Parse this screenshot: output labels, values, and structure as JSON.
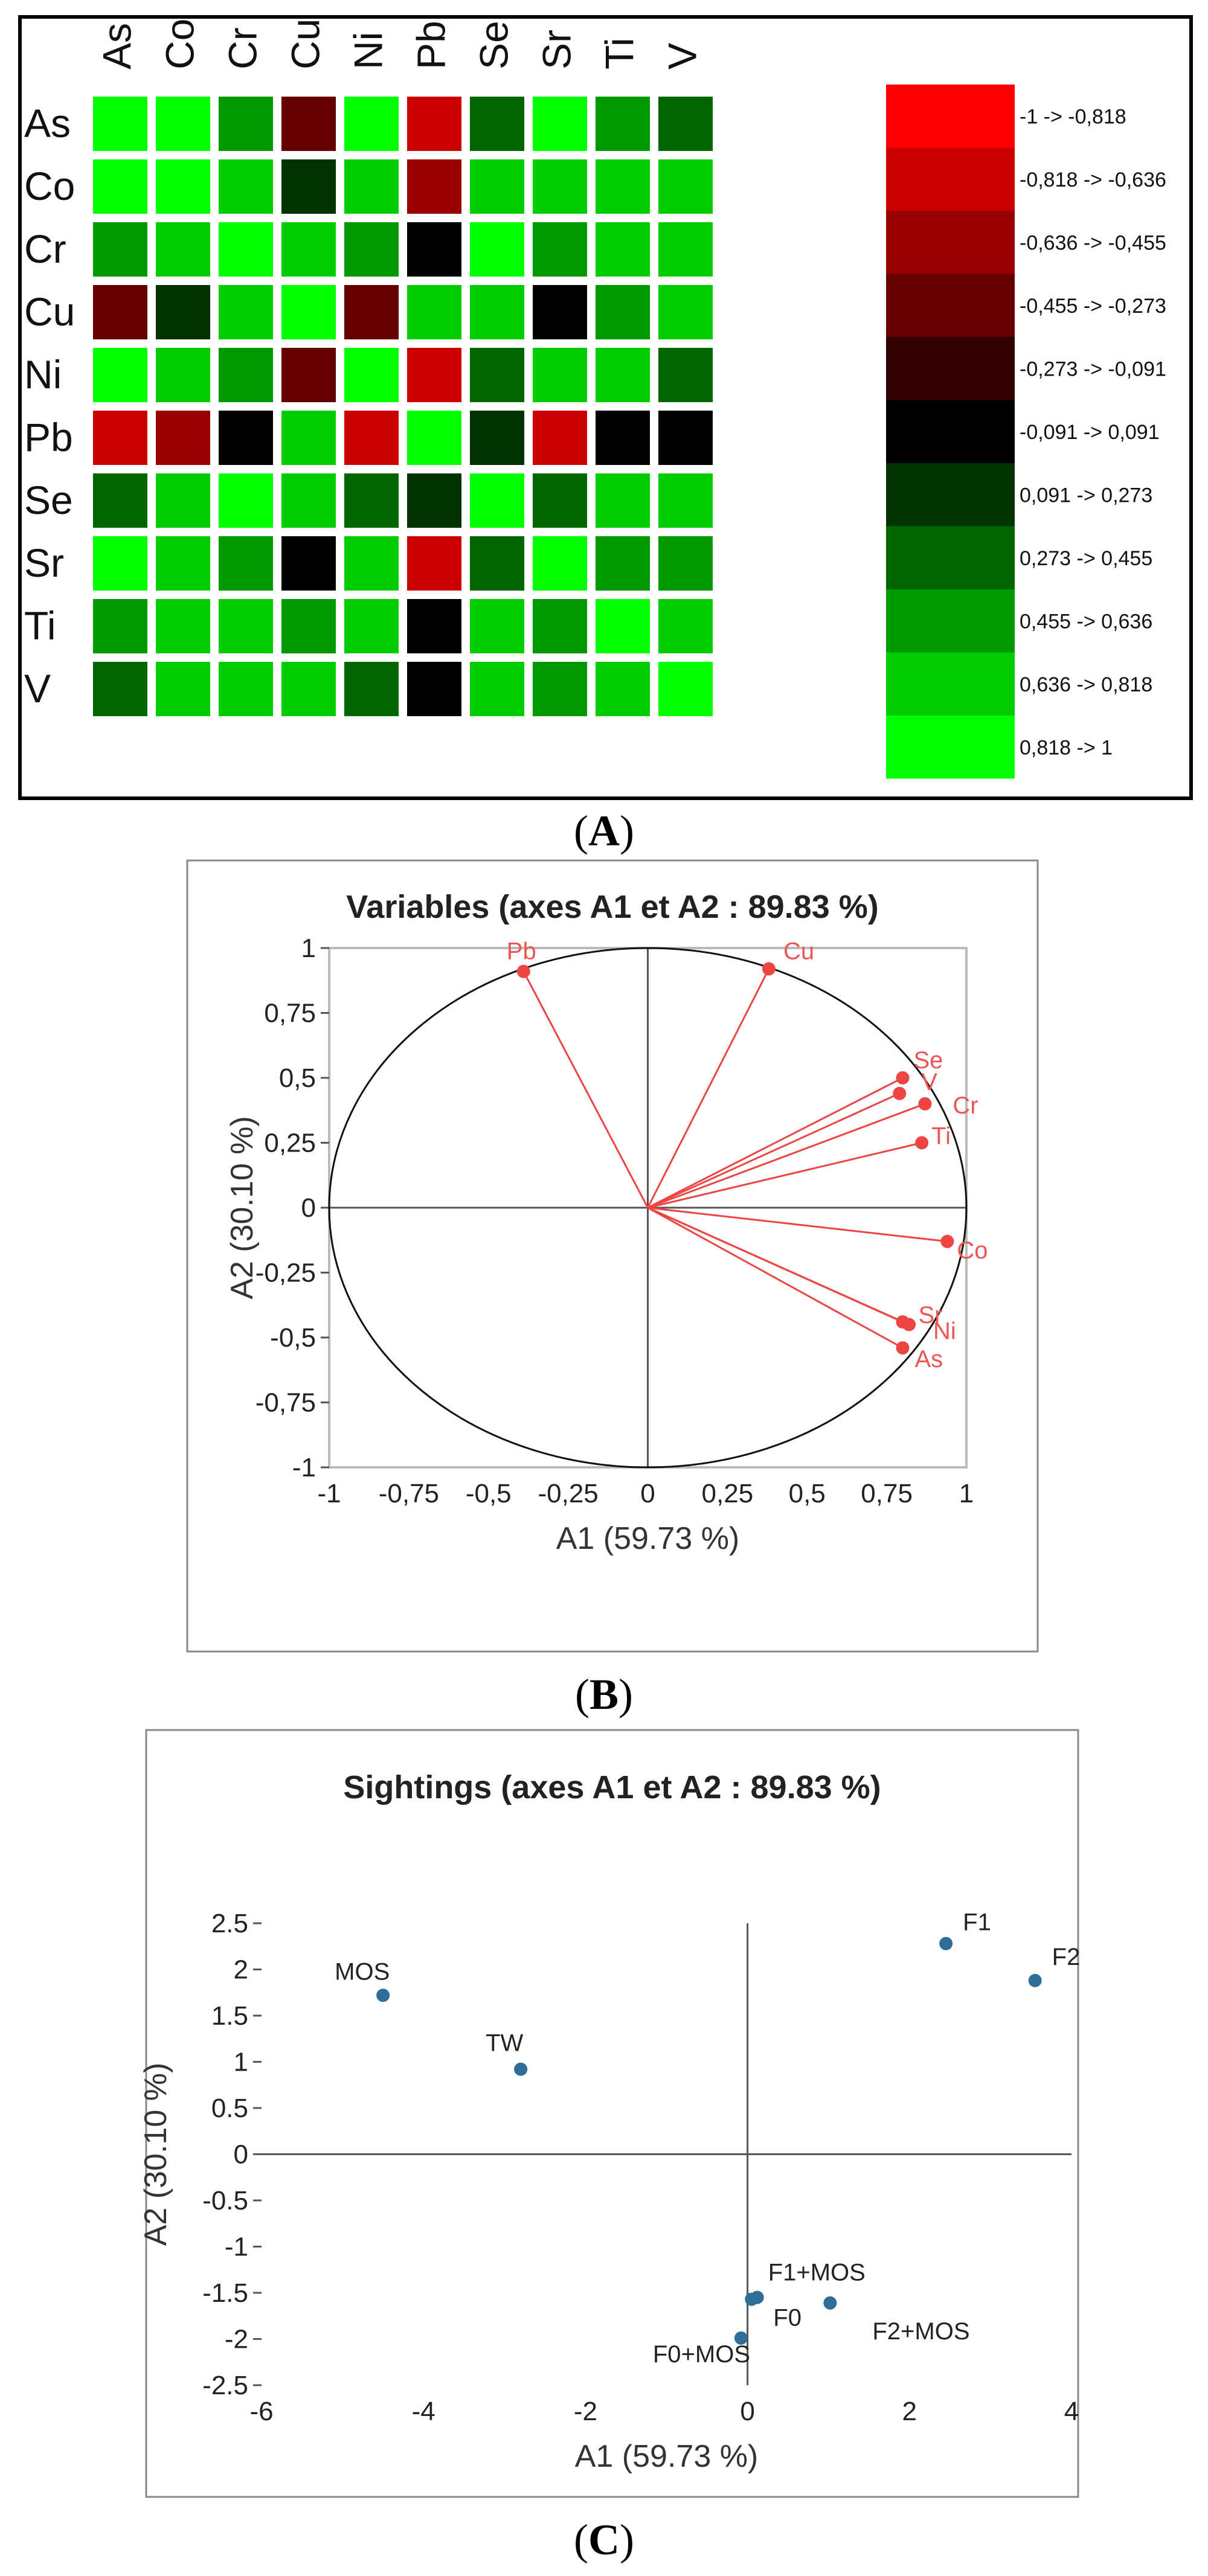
{
  "captions": {
    "a": "A",
    "b": "B",
    "c": "C"
  },
  "chart_data": [
    {
      "type": "heatmap",
      "variables": [
        "As",
        "Co",
        "Cr",
        "Cu",
        "Ni",
        "Pb",
        "Se",
        "Sr",
        "Ti",
        "V"
      ],
      "matrix": [
        [
          1,
          0.9,
          0.55,
          -0.35,
          0.9,
          -0.75,
          0.35,
          0.9,
          0.55,
          0.35
        ],
        [
          0.9,
          1,
          0.75,
          0.2,
          0.75,
          -0.55,
          0.75,
          0.75,
          0.75,
          0.75
        ],
        [
          0.55,
          0.75,
          1,
          0.75,
          0.55,
          0.0,
          0.9,
          0.55,
          0.75,
          0.75
        ],
        [
          -0.35,
          0.2,
          0.75,
          1,
          -0.35,
          0.75,
          0.75,
          0.0,
          0.55,
          0.75
        ],
        [
          0.9,
          0.75,
          0.55,
          -0.35,
          1,
          -0.75,
          0.35,
          0.75,
          0.75,
          0.35
        ],
        [
          -0.75,
          -0.55,
          0.0,
          0.75,
          -0.75,
          1,
          0.2,
          -0.75,
          0.0,
          0.0
        ],
        [
          0.35,
          0.75,
          0.9,
          0.75,
          0.35,
          0.2,
          1,
          0.35,
          0.75,
          0.75
        ],
        [
          0.9,
          0.75,
          0.55,
          0.0,
          0.75,
          -0.75,
          0.35,
          1,
          0.55,
          0.55
        ],
        [
          0.55,
          0.75,
          0.75,
          0.55,
          0.75,
          0.0,
          0.75,
          0.55,
          1,
          0.75
        ],
        [
          0.35,
          0.75,
          0.75,
          0.75,
          0.35,
          0.0,
          0.75,
          0.55,
          0.75,
          1
        ]
      ],
      "legend": [
        {
          "label": "-1 -> -0,818",
          "color": "#ff0000"
        },
        {
          "label": "-0,818 -> -0,636",
          "color": "#cc0000"
        },
        {
          "label": "-0,636 -> -0,455",
          "color": "#990000"
        },
        {
          "label": "-0,455 -> -0,273",
          "color": "#660000"
        },
        {
          "label": "-0,273 -> -0,091",
          "color": "#330000"
        },
        {
          "label": "-0,091 -> 0,091",
          "color": "#000000"
        },
        {
          "label": "0,091 -> 0,273",
          "color": "#003300"
        },
        {
          "label": "0,273 -> 0,455",
          "color": "#006600"
        },
        {
          "label": "0,455 -> 0,636",
          "color": "#009900"
        },
        {
          "label": "0,636 -> 0,818",
          "color": "#00cc00"
        },
        {
          "label": "0,818 -> 1",
          "color": "#00ff00"
        }
      ],
      "bins": [
        -1,
        -0.818,
        -0.636,
        -0.455,
        -0.273,
        -0.091,
        0.091,
        0.273,
        0.455,
        0.636,
        0.818,
        1
      ]
    },
    {
      "type": "scatter",
      "title": "Variables (axes A1 et A2 : 89.83 %)",
      "xlabel": "A1 (59.73 %)",
      "ylabel": "A2 (30.10 %)",
      "xlim": [
        -1,
        1
      ],
      "ylim": [
        -1,
        1
      ],
      "xticks": [
        "-1",
        "-0,75",
        "-0,5",
        "-0,25",
        "0",
        "0,25",
        "0,5",
        "0,75",
        "1"
      ],
      "yticks": [
        "1",
        "0,75",
        "0,5",
        "0,25",
        "0",
        "-0,25",
        "-0,5",
        "-0,75",
        "-1"
      ],
      "point_color": "#ee4444",
      "points": [
        {
          "label": "Pb",
          "x": -0.39,
          "y": 0.91
        },
        {
          "label": "Cu",
          "x": 0.38,
          "y": 0.92
        },
        {
          "label": "Se",
          "x": 0.8,
          "y": 0.5
        },
        {
          "label": "V",
          "x": 0.79,
          "y": 0.44
        },
        {
          "label": "Cr",
          "x": 0.87,
          "y": 0.4
        },
        {
          "label": "Ti",
          "x": 0.86,
          "y": 0.25
        },
        {
          "label": "Co",
          "x": 0.94,
          "y": -0.13
        },
        {
          "label": "Sr",
          "x": 0.8,
          "y": -0.44
        },
        {
          "label": "Ni",
          "x": 0.82,
          "y": -0.45
        },
        {
          "label": "As",
          "x": 0.8,
          "y": -0.54
        }
      ]
    },
    {
      "type": "scatter",
      "title": "Sightings (axes A1 et A2 : 89.83 %)",
      "xlabel": "A1 (59.73 %)",
      "ylabel": "A2 (30.10 %)",
      "xlim": [
        -6,
        4
      ],
      "ylim": [
        -2.5,
        2.5
      ],
      "xticks": [
        "-6",
        "-4",
        "-2",
        "0",
        "2",
        "4"
      ],
      "yticks": [
        "2.5",
        "2",
        "1.5",
        "1",
        "0.5",
        "0",
        "-0.5",
        "-1",
        "-1.5",
        "-2",
        "-2.5"
      ],
      "point_color": "#2e6e99",
      "points": [
        {
          "label": "F1",
          "x": 2.45,
          "y": 2.28
        },
        {
          "label": "F2",
          "x": 3.55,
          "y": 1.88
        },
        {
          "label": "MOS",
          "x": -4.5,
          "y": 1.72
        },
        {
          "label": "TW",
          "x": -2.8,
          "y": 0.92
        },
        {
          "label": "F1+MOS",
          "x": 0.12,
          "y": -1.55
        },
        {
          "label": "F0",
          "x": 0.05,
          "y": -1.57
        },
        {
          "label": "F2+MOS",
          "x": 1.02,
          "y": -1.61
        },
        {
          "label": "F0+MOS",
          "x": -0.08,
          "y": -1.99
        }
      ]
    }
  ]
}
